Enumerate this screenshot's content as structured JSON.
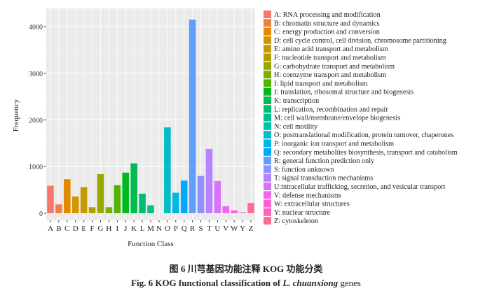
{
  "chart_data": {
    "type": "bar",
    "xlabel": "Function Class",
    "ylabel": "Frequency",
    "ylim": [
      -150,
      4390
    ],
    "yticks": [
      0,
      1000,
      2000,
      3000,
      4000
    ],
    "grid": true,
    "legend_position": "right",
    "categories": [
      "A",
      "B",
      "C",
      "D",
      "E",
      "F",
      "G",
      "H",
      "I",
      "J",
      "K",
      "L",
      "M",
      "N",
      "O",
      "P",
      "Q",
      "R",
      "S",
      "T",
      "U",
      "V",
      "W",
      "Y",
      "Z"
    ],
    "values": [
      590,
      190,
      730,
      360,
      560,
      130,
      840,
      130,
      600,
      870,
      1070,
      420,
      170,
      2,
      1840,
      440,
      700,
      4150,
      800,
      1380,
      690,
      150,
      60,
      20,
      220
    ],
    "colors": [
      "#F8766D",
      "#EE8043",
      "#E38900",
      "#D59400",
      "#C49A00",
      "#AFA200",
      "#99A800",
      "#7CAE00",
      "#53B400",
      "#00B81F",
      "#00BB4E",
      "#00BE6F",
      "#00C08B",
      "#00C1A5",
      "#00BFC4",
      "#00B8E5",
      "#00A9FF",
      "#619CFF",
      "#8F91FF",
      "#B983FF",
      "#DB72FB",
      "#EF67EB",
      "#FD61D1",
      "#FF61C3",
      "#FF6C91"
    ],
    "legend": [
      "A: RNA processing and modification",
      "B: chromatin structure and dynamics",
      "C: energy production and conversion",
      "D: cell cycle control, cell division, chromosome partitioning",
      "E: amino acid transport and metabolism",
      "F: nucleotide transport and metabolism",
      "G: carbohydrate transport and metabolism",
      "H: coenzyme transport and metabolism",
      "I: lipid transport and metabolism",
      "J: translation, ribosomal structure and biogenesis",
      "K: transcription",
      "L: replication, recombination and repair",
      "M: cell wall/membrane/envelope biogenesis",
      "N: cell motility",
      "O: posttranslational modification, protein turnover, chaperones",
      "P: inorganic ion transport and metabolism",
      "Q: secondary metabolites biosynthesis, transport and catabolism",
      "R: general function prediction only",
      "S: function unknown",
      "T: signal transduction mechanisms",
      "U:intracellular trafficking, secretion, and vesicular transport",
      "V: defense mechanisms",
      "W: extracellular structures",
      "Y: nuclear structure",
      "Z: cytoskeleton"
    ]
  },
  "caption": {
    "cn": "图 6   川芎基因功能注释 KOG 功能分类",
    "en_prefix": "Fig. 6   KOG functional classification of ",
    "en_species": "L. chuanxiong",
    "en_suffix": " genes"
  }
}
